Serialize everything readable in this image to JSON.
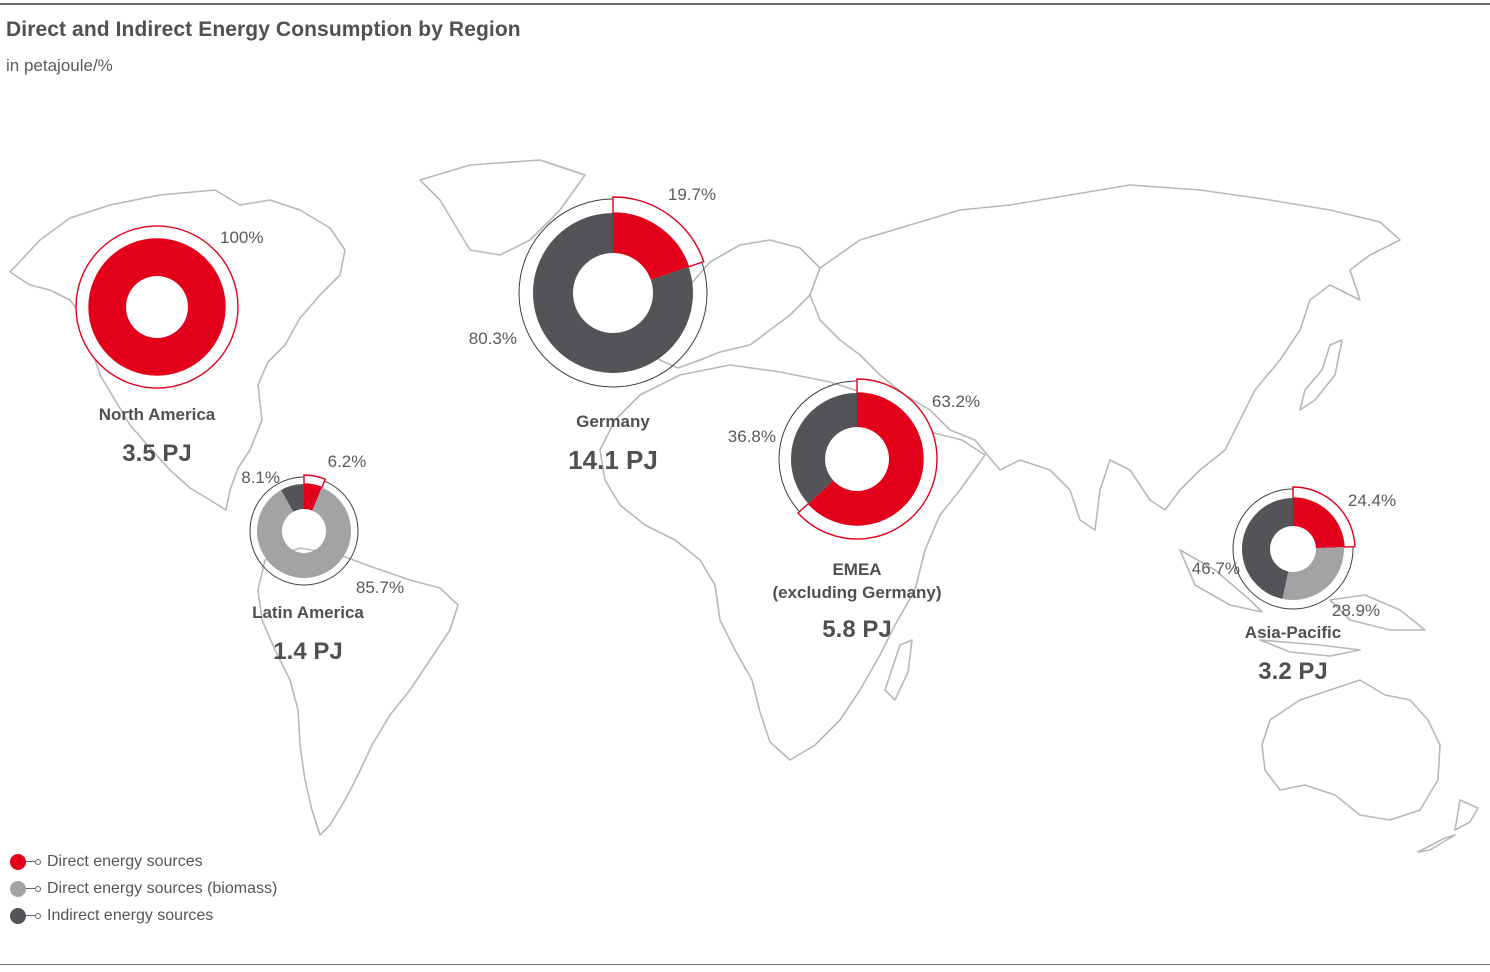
{
  "header": {
    "title": "Direct and Indirect Energy Consumption by Region",
    "subtitle": "in petajoule/%"
  },
  "colors": {
    "direct": "#e2001a",
    "biomass": "#a3a3a6",
    "indirect": "#545458",
    "map_outline": "#b8b8bb"
  },
  "legend": {
    "items": [
      {
        "label": "Direct energy sources",
        "color": "#e2001a"
      },
      {
        "label": "Direct energy sources (biomass)",
        "color": "#a3a3a6"
      },
      {
        "label": "Indirect energy sources",
        "color": "#545458"
      }
    ]
  },
  "chart_data": {
    "type": "pie",
    "variant": "donut",
    "unit": "PJ",
    "series_names": [
      "Direct energy sources",
      "Direct energy sources (biomass)",
      "Indirect energy sources"
    ],
    "regions": [
      {
        "name": "North America",
        "total": 3.5,
        "total_label": "3.5 PJ",
        "slices": [
          {
            "series": "Direct energy sources",
            "value": 100,
            "label": "100%"
          }
        ]
      },
      {
        "name": "Germany",
        "total": 14.1,
        "total_label": "14.1 PJ",
        "slices": [
          {
            "series": "Direct energy sources",
            "value": 19.7,
            "label": "19.7%"
          },
          {
            "series": "Indirect energy sources",
            "value": 80.3,
            "label": "80.3%"
          }
        ]
      },
      {
        "name": "Latin America",
        "total": 1.4,
        "total_label": "1.4 PJ",
        "slices": [
          {
            "series": "Direct energy sources",
            "value": 6.2,
            "label": "6.2%"
          },
          {
            "series": "Direct energy sources (biomass)",
            "value": 85.7,
            "label": "85.7%"
          },
          {
            "series": "Indirect energy sources",
            "value": 8.1,
            "label": "8.1%"
          }
        ]
      },
      {
        "name": "EMEA\n(excluding Germany)",
        "total": 5.8,
        "total_label": "5.8 PJ",
        "slices": [
          {
            "series": "Direct energy sources",
            "value": 63.2,
            "label": "63.2%"
          },
          {
            "series": "Indirect energy sources",
            "value": 36.8,
            "label": "36.8%"
          }
        ]
      },
      {
        "name": "Asia-Pacific",
        "total": 3.2,
        "total_label": "3.2 PJ",
        "slices": [
          {
            "series": "Direct energy sources",
            "value": 24.4,
            "label": "24.4%"
          },
          {
            "series": "Direct energy sources (biomass)",
            "value": 28.9,
            "label": "28.9%"
          },
          {
            "series": "Indirect energy sources",
            "value": 46.7,
            "label": "46.7%"
          }
        ]
      }
    ]
  }
}
